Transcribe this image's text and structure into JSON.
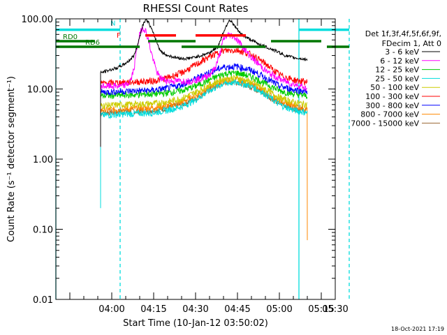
{
  "chart_data": {
    "type": "line",
    "title": "RHESSI Count Rates",
    "xlabel": "Start Time (10-Jan-12 03:50:02)",
    "ylabel": "Count Rate (s⁻¹ detector segment⁻¹)",
    "yscale": "log",
    "xlim": [
      -10,
      90
    ],
    "ylim": [
      0.01,
      100
    ],
    "x_unit": "minutes after 03:50:02",
    "xticks": [
      {
        "value": 10,
        "label": "04:00"
      },
      {
        "value": 25,
        "label": "04:15"
      },
      {
        "value": 40,
        "label": "04:30"
      },
      {
        "value": 55,
        "label": "04:45"
      },
      {
        "value": 70,
        "label": "05:00"
      },
      {
        "value": 85,
        "label": "05:15"
      },
      {
        "value": 100,
        "label": "05:30"
      }
    ],
    "yticks": [
      {
        "value": 0.01,
        "label": "0.01"
      },
      {
        "value": 0.1,
        "label": "0.10"
      },
      {
        "value": 1,
        "label": "1.00"
      },
      {
        "value": 10,
        "label": "10.00"
      },
      {
        "value": 100,
        "label": "100.00"
      }
    ],
    "legend_header": [
      "Det 1f,3f,4f,5f,6f,9f,",
      "FDecim 1, Att 0"
    ],
    "legend_position": "right",
    "timestamp": "18-Oct-2021 17:19",
    "series": [
      {
        "name": "3 - 6 keV",
        "color": "#000000",
        "x": [
          6,
          8,
          10,
          12,
          14,
          16,
          18,
          19,
          20,
          21,
          22,
          23,
          24,
          25,
          26,
          27,
          28,
          30,
          33,
          36,
          39,
          42,
          45,
          48,
          50,
          52,
          53,
          54,
          55,
          56,
          58,
          60,
          62,
          65,
          68,
          70,
          72,
          75,
          78,
          80
        ],
        "y": [
          17,
          18,
          19,
          20,
          22,
          25,
          30,
          40,
          55,
          80,
          97,
          92,
          75,
          60,
          48,
          38,
          33,
          30,
          28,
          27,
          28,
          30,
          33,
          40,
          65,
          97,
          90,
          78,
          70,
          62,
          55,
          50,
          45,
          40,
          36,
          33,
          30,
          28,
          27,
          26
        ]
      },
      {
        "name": "6 - 12 keV",
        "color": "#ff00ff",
        "x": [
          6,
          10,
          14,
          16,
          17,
          18,
          19,
          20,
          21,
          22,
          23,
          24,
          25,
          26,
          27,
          28,
          30,
          34,
          38,
          42,
          45,
          47,
          48,
          49,
          50,
          52,
          54,
          56,
          58,
          60,
          63,
          66,
          70,
          74,
          78,
          80
        ],
        "y": [
          11,
          11,
          11,
          12,
          14,
          20,
          38,
          60,
          75,
          70,
          52,
          35,
          25,
          18,
          15,
          14,
          13,
          13,
          13,
          14,
          16,
          20,
          26,
          35,
          52,
          60,
          55,
          45,
          35,
          28,
          22,
          17,
          14,
          12,
          11,
          10
        ]
      },
      {
        "name": "12 - 25 keV",
        "color": "#00cc00",
        "x": [
          6,
          15,
          25,
          30,
          35,
          40,
          45,
          50,
          55,
          60,
          65,
          70,
          75,
          80
        ],
        "y": [
          8,
          8.2,
          8.5,
          8.8,
          9.5,
          11,
          13.5,
          16.5,
          17,
          15,
          12,
          9.5,
          8.5,
          8
        ]
      },
      {
        "name": "25 - 50 keV",
        "color": "#00dddd",
        "x": [
          6,
          15,
          25,
          30,
          35,
          40,
          45,
          50,
          55,
          60,
          65,
          70,
          75,
          80
        ],
        "y": [
          4.2,
          4.4,
          4.6,
          5,
          5.6,
          7,
          9.5,
          12,
          12.5,
          11,
          8.5,
          6,
          5,
          4.6
        ]
      },
      {
        "name": "50 - 100 keV",
        "color": "#cccc00",
        "x": [
          6,
          15,
          25,
          30,
          35,
          40,
          45,
          50,
          55,
          60,
          65,
          70,
          75,
          80
        ],
        "y": [
          5.8,
          6,
          6.2,
          6.6,
          7.3,
          9,
          11.5,
          14,
          14.5,
          12.5,
          10,
          7.5,
          6.5,
          6
        ]
      },
      {
        "name": "100 - 300 keV",
        "color": "#ff0000",
        "x": [
          6,
          15,
          25,
          30,
          35,
          40,
          45,
          50,
          55,
          60,
          65,
          70,
          75,
          80
        ],
        "y": [
          12,
          12.5,
          13,
          14.5,
          17,
          22,
          29,
          35,
          36,
          31,
          23,
          16,
          13.5,
          12.5
        ]
      },
      {
        "name": "300 - 800 keV",
        "color": "#0000ff",
        "x": [
          6,
          15,
          25,
          30,
          35,
          40,
          45,
          50,
          55,
          60,
          65,
          70,
          75,
          80
        ],
        "y": [
          9,
          9.3,
          9.6,
          10.3,
          11.5,
          14,
          17.5,
          20.5,
          21,
          18.5,
          14.5,
          11,
          9.8,
          9.3
        ]
      },
      {
        "name": "800 - 7000 keV",
        "color": "#ff8800",
        "x": [
          6,
          15,
          25,
          30,
          35,
          40,
          45,
          50,
          55,
          60,
          65,
          70,
          75,
          80
        ],
        "y": [
          5,
          5.2,
          5.4,
          5.8,
          6.5,
          8,
          10.5,
          13,
          13.5,
          11.5,
          9,
          6.8,
          5.8,
          5.3
        ]
      },
      {
        "name": "7000 - 15000 keV",
        "color": "#996633",
        "x": [
          6,
          15,
          25,
          30,
          35,
          40,
          45,
          50,
          55,
          60,
          65,
          70,
          75,
          80
        ],
        "y": [
          4.6,
          4.8,
          5,
          5.4,
          6,
          7.4,
          9.8,
          12.3,
          12.8,
          10.8,
          8.4,
          6.3,
          5.4,
          4.9
        ]
      }
    ],
    "vertical_lines": [
      {
        "x": -10,
        "color": "#00dddd",
        "style": "solid"
      },
      {
        "x": 13,
        "color": "#00dddd",
        "style": "dashed"
      },
      {
        "x": 77,
        "color": "#00dddd",
        "style": "solid"
      },
      {
        "x": 95,
        "color": "#00dddd",
        "style": "dashed"
      }
    ],
    "flag_bars": [
      {
        "label": "",
        "color": "#00dddd",
        "y": 70,
        "segments": [
          [
            -10,
            13
          ],
          [
            77,
            95
          ]
        ]
      },
      {
        "label": "N",
        "color": "#00dddd",
        "y": 82,
        "segments": []
      },
      {
        "label": "F",
        "color": "#ff0000",
        "y": 58,
        "segments": [
          [
            22,
            33
          ],
          [
            40,
            58
          ]
        ]
      },
      {
        "label": "RD0",
        "color": "#007700",
        "y": 48,
        "segments": [
          [
            -10,
            4
          ],
          [
            23,
            40
          ],
          [
            67,
            85
          ]
        ]
      },
      {
        "label": "RD6",
        "color": "#007700",
        "y": 40,
        "segments": [
          [
            -10,
            4
          ],
          [
            4,
            20
          ],
          [
            35,
            65
          ],
          [
            87,
            95
          ]
        ]
      }
    ]
  }
}
